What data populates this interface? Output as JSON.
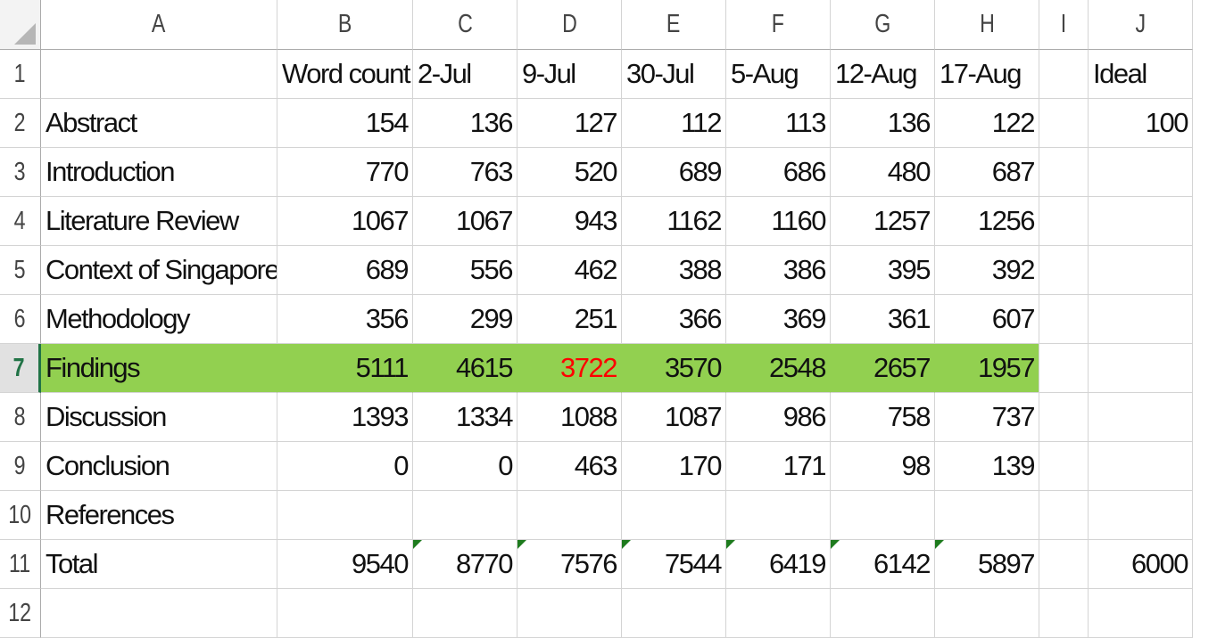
{
  "columns": [
    "A",
    "B",
    "C",
    "D",
    "E",
    "F",
    "G",
    "H",
    "I",
    "J"
  ],
  "row_numbers": [
    "1",
    "2",
    "3",
    "4",
    "5",
    "6",
    "7",
    "8",
    "9",
    "10",
    "11",
    "12"
  ],
  "rows": [
    [
      "",
      "Word count",
      "2-Jul",
      "9-Jul",
      "30-Jul",
      "5-Aug",
      "12-Aug",
      "17-Aug",
      "",
      "Ideal"
    ],
    [
      "Abstract",
      "154",
      "136",
      "127",
      "112",
      "113",
      "136",
      "122",
      "",
      "100"
    ],
    [
      "Introduction",
      "770",
      "763",
      "520",
      "689",
      "686",
      "480",
      "687",
      "",
      ""
    ],
    [
      "Literature Review",
      "1067",
      "1067",
      "943",
      "1162",
      "1160",
      "1257",
      "1256",
      "",
      ""
    ],
    [
      "Context of Singapore",
      "689",
      "556",
      "462",
      "388",
      "386",
      "395",
      "392",
      "",
      ""
    ],
    [
      "Methodology",
      "356",
      "299",
      "251",
      "366",
      "369",
      "361",
      "607",
      "",
      ""
    ],
    [
      "Findings",
      "5111",
      "4615",
      "3722",
      "3570",
      "2548",
      "2657",
      "1957",
      "",
      ""
    ],
    [
      "Discussion",
      "1393",
      "1334",
      "1088",
      "1087",
      "986",
      "758",
      "737",
      "",
      ""
    ],
    [
      "Conclusion",
      "0",
      "0",
      "463",
      "170",
      "171",
      "98",
      "139",
      "",
      ""
    ],
    [
      "References",
      "",
      "",
      "",
      "",
      "",
      "",
      "",
      "",
      ""
    ],
    [
      "Total",
      "9540",
      "8770",
      "7576",
      "7544",
      "6419",
      "6142",
      "5897",
      "",
      "6000"
    ],
    [
      "",
      "",
      "",
      "",
      "",
      "",
      "",
      "",
      "",
      ""
    ]
  ],
  "selected_row_number": "7",
  "highlighted_row": {
    "row": "7",
    "fill_color": "#92d050"
  },
  "red_cell": {
    "ref": "D7",
    "color": "#ff0000"
  },
  "total_row_formula_flags": [
    "C11",
    "D11",
    "E11",
    "F11",
    "G11",
    "H11"
  ],
  "header_accent_color": "#217346"
}
